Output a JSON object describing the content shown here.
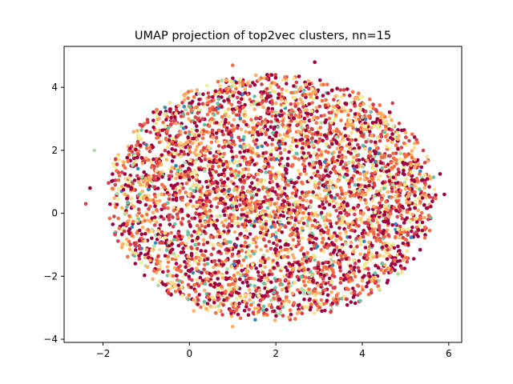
{
  "chart_data": {
    "type": "scatter",
    "title": "UMAP projection of top2vec clusters, nn=15",
    "xlabel": "",
    "ylabel": "",
    "xlim": [
      -2.9,
      6.3
    ],
    "ylim": [
      -4.1,
      5.3
    ],
    "xticks": [
      -2,
      0,
      2,
      4,
      6
    ],
    "yticks": [
      -4,
      -2,
      0,
      2,
      4
    ],
    "grid": false,
    "legend": "none",
    "colormap": "Spectral",
    "cluster_colors": [
      "#9e0142",
      "#d53e4f",
      "#f46d43",
      "#fdae61",
      "#fee08b",
      "#e6f598",
      "#abdda4",
      "#66c2a5",
      "#3288bd"
    ],
    "point_count": 4500,
    "distribution": {
      "center": [
        1.9,
        0.5
      ],
      "radius_x": 3.8,
      "radius_y": 3.9
    },
    "outlier_points": [
      {
        "x": 5.8,
        "y": 1.25
      },
      {
        "x": 5.9,
        "y": 0.6
      },
      {
        "x": -2.4,
        "y": 0.3
      },
      {
        "x": 1.0,
        "y": -3.6
      },
      {
        "x": 2.9,
        "y": 4.8
      },
      {
        "x": 1.0,
        "y": 4.7
      },
      {
        "x": -2.2,
        "y": 2.0
      },
      {
        "x": 5.5,
        "y": 1.8
      },
      {
        "x": -2.3,
        "y": 0.8
      },
      {
        "x": 0.1,
        "y": -3.1
      },
      {
        "x": 2.3,
        "y": -3.3
      },
      {
        "x": 4.7,
        "y": 3.5
      }
    ]
  }
}
